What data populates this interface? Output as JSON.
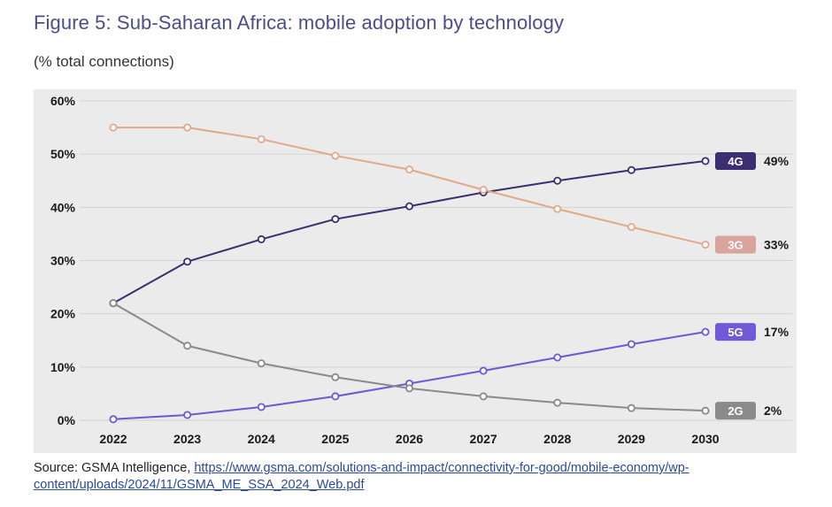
{
  "header": {
    "title": "Figure 5: Sub-Saharan Africa: mobile adoption by technology",
    "subtitle": "(% total connections)"
  },
  "footer": {
    "source_label": "Source: GSMA Intelligence, ",
    "source_link": "https://www.gsma.com/solutions-and-impact/connectivity-for-good/mobile-economy/wp-content/uploads/2024/11/GSMA_ME_SSA_2024_Web.pdf"
  },
  "chart_data": {
    "type": "line",
    "title": "Figure 5: Sub-Saharan Africa: mobile adoption by technology",
    "subtitle": "(% total connections)",
    "xlabel": "",
    "ylabel": "",
    "x": [
      "2022",
      "2023",
      "2024",
      "2025",
      "2026",
      "2027",
      "2028",
      "2029",
      "2030"
    ],
    "ylim": [
      0,
      60
    ],
    "yticks": [
      0,
      10,
      20,
      30,
      40,
      50,
      60
    ],
    "ytick_labels": [
      "0%",
      "10%",
      "20%",
      "30%",
      "40%",
      "50%",
      "60%"
    ],
    "grid": true,
    "legend": "end-of-line labels",
    "series": [
      {
        "name": "4G",
        "color": "#3b2f72",
        "badge_color": "#3b2f72",
        "values": [
          22,
          29.8,
          34,
          37.8,
          40.2,
          42.8,
          45,
          47,
          48.7
        ],
        "end_label": "49%"
      },
      {
        "name": "3G",
        "color": "#e0a98a",
        "badge_color": "#d9a49b",
        "values": [
          55,
          55,
          52.8,
          49.7,
          47.1,
          43.3,
          39.7,
          36.3,
          33
        ],
        "end_label": "33%"
      },
      {
        "name": "5G",
        "color": "#6f57d6",
        "badge_color": "#7058d8",
        "values": [
          0.2,
          1,
          2.5,
          4.5,
          6.9,
          9.3,
          11.8,
          14.3,
          16.6
        ],
        "end_label": "17%"
      },
      {
        "name": "2G",
        "color": "#8a8a8a",
        "badge_color": "#8a8a8a",
        "values": [
          22,
          14,
          10.7,
          8.1,
          6,
          4.5,
          3.3,
          2.3,
          1.8
        ],
        "end_label": "2%"
      }
    ]
  }
}
